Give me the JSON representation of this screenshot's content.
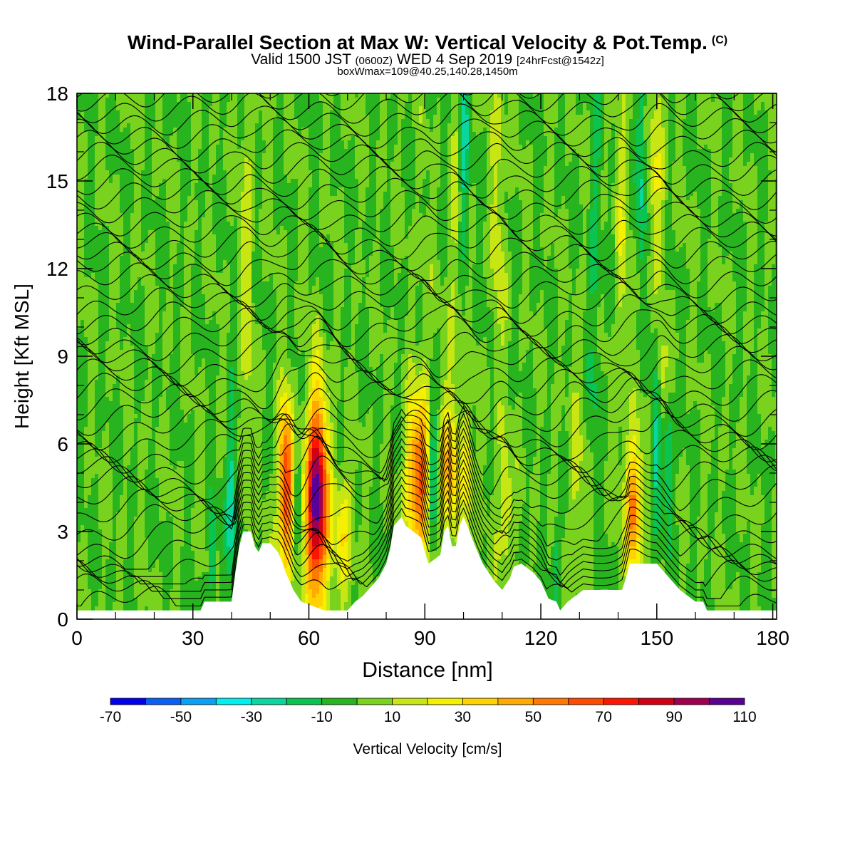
{
  "title": {
    "main": "Wind-Parallel Section at Max W: Vertical Velocity & Pot.Temp.",
    "copyright": "(C)",
    "line2_a": "Valid 1500 JST",
    "line2_b": "(0600Z)",
    "line2_c": "WED 4 Sep 2019",
    "line2_d": "[24hrFcst@1542z]",
    "line3": "boxWmax=109@40.25,140.28,1450m"
  },
  "chart_data": {
    "type": "heatmap",
    "xlabel": "Distance [nm]",
    "ylabel": "Height [Kft MSL]",
    "xlim": [
      0,
      181
    ],
    "ylim": [
      0,
      18
    ],
    "xticks": [
      0,
      30,
      60,
      90,
      120,
      150,
      180
    ],
    "yticks": [
      0,
      3,
      6,
      9,
      12,
      15,
      18
    ],
    "colorbar": {
      "label": "Vertical Velocity [cm/s]",
      "tick_labels": [
        "-70",
        "-50",
        "-30",
        "-10",
        "10",
        "30",
        "50",
        "70",
        "90",
        "110"
      ],
      "bounds": [
        -70,
        -60,
        -50,
        -40,
        -30,
        -20,
        -10,
        0,
        10,
        20,
        30,
        40,
        50,
        60,
        70,
        80,
        90,
        100,
        110
      ],
      "colors": [
        "#0000f0",
        "#0a5ff5",
        "#0aa0f5",
        "#00f0f0",
        "#0ad7a0",
        "#0ac350",
        "#28b41e",
        "#78d21e",
        "#c8e614",
        "#f5f000",
        "#ffd200",
        "#ffaa00",
        "#ff7800",
        "#ff4b00",
        "#ff1400",
        "#d20014",
        "#a00050",
        "#5a0096"
      ]
    },
    "background_w": 0,
    "terrain": [
      [
        0,
        0.3
      ],
      [
        32,
        0.3
      ],
      [
        33,
        0.6
      ],
      [
        40,
        0.6
      ],
      [
        41,
        1.6
      ],
      [
        42,
        2.5
      ],
      [
        43,
        3.0
      ],
      [
        45,
        3.0
      ],
      [
        46,
        2.5
      ],
      [
        47,
        2.3
      ],
      [
        48,
        2.6
      ],
      [
        50,
        2.6
      ],
      [
        52,
        2.3
      ],
      [
        53,
        2.0
      ],
      [
        54,
        1.6
      ],
      [
        56,
        1.0
      ],
      [
        58,
        0.6
      ],
      [
        62,
        0.4
      ],
      [
        64,
        0.3
      ],
      [
        70,
        0.3
      ],
      [
        72,
        0.6
      ],
      [
        74,
        0.8
      ],
      [
        76,
        1.1
      ],
      [
        78,
        1.4
      ],
      [
        80,
        1.9
      ],
      [
        81,
        2.4
      ],
      [
        82,
        3.2
      ],
      [
        84,
        3.5
      ],
      [
        85,
        3.2
      ],
      [
        87,
        3.0
      ],
      [
        89,
        2.8
      ],
      [
        90,
        2.3
      ],
      [
        91,
        1.9
      ],
      [
        94,
        2.2
      ],
      [
        95,
        3.0
      ],
      [
        96,
        3.2
      ],
      [
        97,
        2.5
      ],
      [
        98,
        2.5
      ],
      [
        99,
        3.2
      ],
      [
        100,
        3.5
      ],
      [
        101,
        3.2
      ],
      [
        103,
        2.5
      ],
      [
        105,
        1.9
      ],
      [
        108,
        1.3
      ],
      [
        110,
        1.0
      ],
      [
        112,
        1.4
      ],
      [
        113,
        1.8
      ],
      [
        115,
        1.9
      ],
      [
        118,
        1.6
      ],
      [
        120,
        1.3
      ],
      [
        122,
        0.7
      ],
      [
        124,
        0.6
      ],
      [
        125,
        0.3
      ],
      [
        127,
        0.6
      ],
      [
        131,
        1.0
      ],
      [
        138,
        1.0
      ],
      [
        141,
        1.0
      ],
      [
        142,
        1.4
      ],
      [
        143,
        1.9
      ],
      [
        150,
        1.9
      ],
      [
        152,
        1.6
      ],
      [
        154,
        1.3
      ],
      [
        156,
        1.0
      ],
      [
        158,
        0.8
      ],
      [
        160,
        0.6
      ],
      [
        162,
        0.6
      ],
      [
        163,
        0.3
      ],
      [
        181,
        0.3
      ]
    ],
    "updrafts": [
      {
        "x": 62,
        "y": 4.0,
        "sx": 2.0,
        "sy": 2.4,
        "w": 110
      },
      {
        "x": 54,
        "y": 4.5,
        "sx": 1.3,
        "sy": 2.0,
        "w": 75
      },
      {
        "x": 88,
        "y": 4.8,
        "sx": 2.0,
        "sy": 1.8,
        "w": 62
      },
      {
        "x": 96,
        "y": 5.0,
        "sx": 1.4,
        "sy": 1.6,
        "w": 40
      },
      {
        "x": 101,
        "y": 5.2,
        "sx": 1.0,
        "sy": 1.5,
        "w": 30
      },
      {
        "x": 69,
        "y": 3.0,
        "sx": 1.6,
        "sy": 1.6,
        "w": 28
      },
      {
        "x": 144,
        "y": 3.8,
        "sx": 1.4,
        "sy": 1.6,
        "w": 60
      },
      {
        "x": 111,
        "y": 3.8,
        "sx": 1.0,
        "sy": 1.4,
        "w": 28
      },
      {
        "x": 151,
        "y": 8.0,
        "sx": 1.2,
        "sy": 1.2,
        "w": 25
      },
      {
        "x": 129,
        "y": 4.5,
        "sx": 1.6,
        "sy": 2.5,
        "w": 12
      },
      {
        "x": 150,
        "y": 16.0,
        "sx": 1.5,
        "sy": 4.0,
        "w": 18
      },
      {
        "x": 141,
        "y": 13.0,
        "sx": 1.2,
        "sy": 5.0,
        "w": 14
      },
      {
        "x": 109,
        "y": 14.0,
        "sx": 1.2,
        "sy": 6.0,
        "w": 14
      },
      {
        "x": 98,
        "y": 11.0,
        "sx": 1.2,
        "sy": 5.0,
        "w": 14
      },
      {
        "x": 44,
        "y": 12.0,
        "sx": 1.2,
        "sy": 6.0,
        "w": 14
      },
      {
        "x": 90,
        "y": 8.0,
        "sx": 1.0,
        "sy": 4.0,
        "w": 12
      }
    ],
    "downdrafts": [
      {
        "x": 40,
        "y": 4.0,
        "sx": 0.9,
        "sy": 2.0,
        "w": -32
      },
      {
        "x": 35,
        "y": 2.0,
        "sx": 0.6,
        "sy": 1.2,
        "w": -30
      },
      {
        "x": 92,
        "y": 5.0,
        "sx": 0.7,
        "sy": 1.5,
        "w": -30
      },
      {
        "x": 57,
        "y": 4.5,
        "sx": 0.6,
        "sy": 1.5,
        "w": -22
      },
      {
        "x": 150,
        "y": 7.0,
        "sx": 0.9,
        "sy": 2.5,
        "w": -28
      },
      {
        "x": 153,
        "y": 5.5,
        "sx": 0.9,
        "sy": 1.5,
        "w": -25
      },
      {
        "x": 100,
        "y": 16.0,
        "sx": 0.8,
        "sy": 3.0,
        "w": -25
      },
      {
        "x": 134,
        "y": 12.0,
        "sx": 1.0,
        "sy": 5.0,
        "w": -14
      },
      {
        "x": 124,
        "y": 2.0,
        "sx": 0.8,
        "sy": 1.0,
        "w": -20
      },
      {
        "x": 146,
        "y": 16.0,
        "sx": 0.8,
        "sy": 3.0,
        "w": -24
      }
    ],
    "theta_contours_count": 44
  }
}
